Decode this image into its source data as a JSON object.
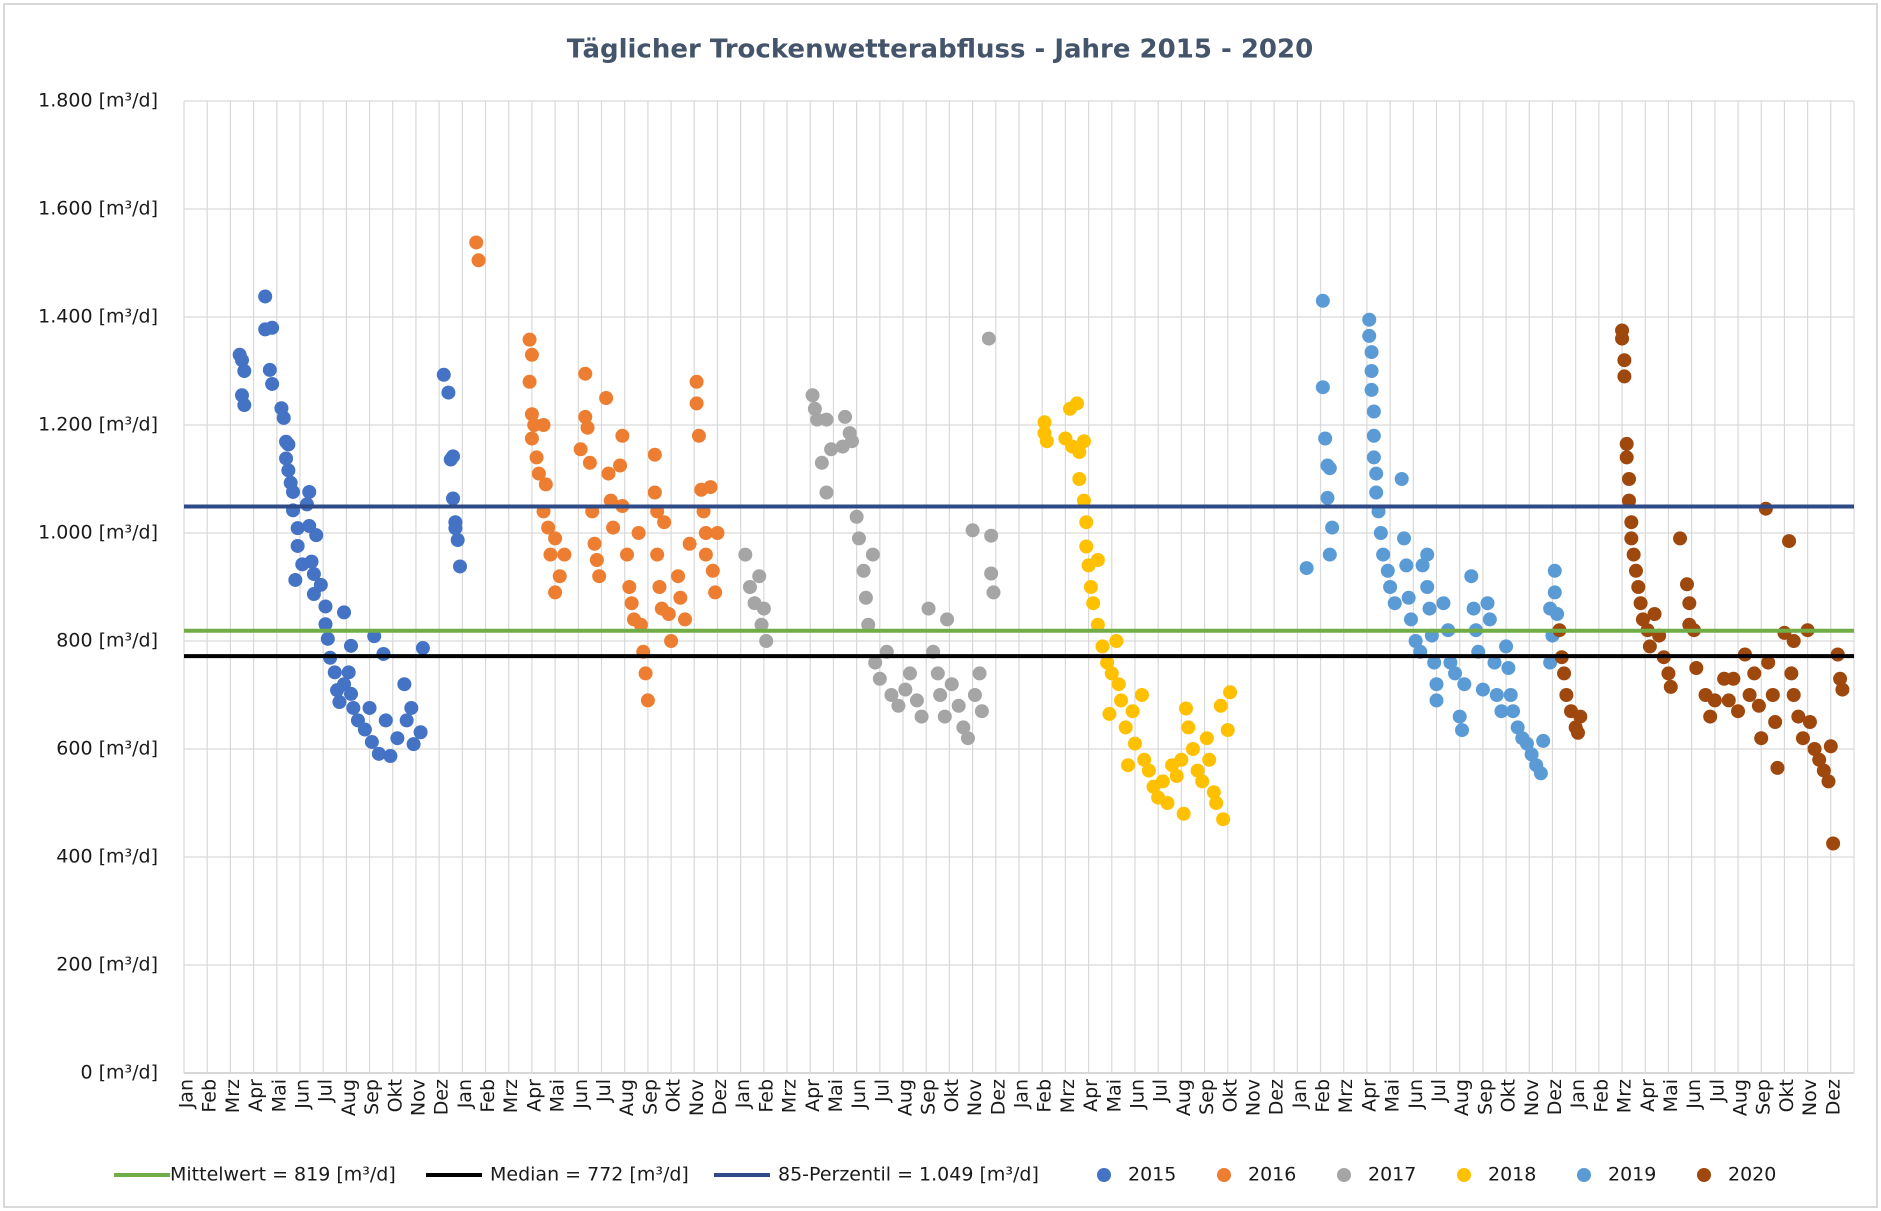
{
  "chart_data": {
    "type": "scatter",
    "title": "Täglicher Trockenwetterabfluss - Jahre 2015 - 2020",
    "xlim": [
      0,
      72
    ],
    "xticks": [
      {
        "value": 0,
        "label": "Jan"
      },
      {
        "value": 1,
        "label": "Feb"
      },
      {
        "value": 2,
        "label": "Mrz"
      },
      {
        "value": 3,
        "label": "Apr"
      },
      {
        "value": 4,
        "label": "Mai"
      },
      {
        "value": 5,
        "label": "Jun"
      },
      {
        "value": 6,
        "label": "Jul"
      },
      {
        "value": 7,
        "label": "Aug"
      },
      {
        "value": 8,
        "label": "Sep"
      },
      {
        "value": 9,
        "label": "Okt"
      },
      {
        "value": 10,
        "label": "Nov"
      },
      {
        "value": 11,
        "label": "Dez"
      },
      {
        "value": 12,
        "label": "Jan"
      },
      {
        "value": 13,
        "label": "Feb"
      },
      {
        "value": 14,
        "label": "Mrz"
      },
      {
        "value": 15,
        "label": "Apr"
      },
      {
        "value": 16,
        "label": "Mai"
      },
      {
        "value": 17,
        "label": "Jun"
      },
      {
        "value": 18,
        "label": "Jul"
      },
      {
        "value": 19,
        "label": "Aug"
      },
      {
        "value": 20,
        "label": "Sep"
      },
      {
        "value": 21,
        "label": "Okt"
      },
      {
        "value": 22,
        "label": "Nov"
      },
      {
        "value": 23,
        "label": "Dez"
      },
      {
        "value": 24,
        "label": "Jan"
      },
      {
        "value": 25,
        "label": "Feb"
      },
      {
        "value": 26,
        "label": "Mrz"
      },
      {
        "value": 27,
        "label": "Apr"
      },
      {
        "value": 28,
        "label": "Mai"
      },
      {
        "value": 29,
        "label": "Jun"
      },
      {
        "value": 30,
        "label": "Jul"
      },
      {
        "value": 31,
        "label": "Aug"
      },
      {
        "value": 32,
        "label": "Sep"
      },
      {
        "value": 33,
        "label": "Okt"
      },
      {
        "value": 34,
        "label": "Nov"
      },
      {
        "value": 35,
        "label": "Dez"
      },
      {
        "value": 36,
        "label": "Jan"
      },
      {
        "value": 37,
        "label": "Feb"
      },
      {
        "value": 38,
        "label": "Mrz"
      },
      {
        "value": 39,
        "label": "Apr"
      },
      {
        "value": 40,
        "label": "Mai"
      },
      {
        "value": 41,
        "label": "Jun"
      },
      {
        "value": 42,
        "label": "Jul"
      },
      {
        "value": 43,
        "label": "Aug"
      },
      {
        "value": 44,
        "label": "Sep"
      },
      {
        "value": 45,
        "label": "Okt"
      },
      {
        "value": 46,
        "label": "Nov"
      },
      {
        "value": 47,
        "label": "Dez"
      },
      {
        "value": 48,
        "label": "Jan"
      },
      {
        "value": 49,
        "label": "Feb"
      },
      {
        "value": 50,
        "label": "Mrz"
      },
      {
        "value": 51,
        "label": "Apr"
      },
      {
        "value": 52,
        "label": "Mai"
      },
      {
        "value": 53,
        "label": "Jun"
      },
      {
        "value": 54,
        "label": "Jul"
      },
      {
        "value": 55,
        "label": "Aug"
      },
      {
        "value": 56,
        "label": "Sep"
      },
      {
        "value": 57,
        "label": "Okt"
      },
      {
        "value": 58,
        "label": "Nov"
      },
      {
        "value": 59,
        "label": "Dez"
      },
      {
        "value": 60,
        "label": "Jan"
      },
      {
        "value": 61,
        "label": "Feb"
      },
      {
        "value": 62,
        "label": "Mrz"
      },
      {
        "value": 63,
        "label": "Apr"
      },
      {
        "value": 64,
        "label": "Mai"
      },
      {
        "value": 65,
        "label": "Jun"
      },
      {
        "value": 66,
        "label": "Jul"
      },
      {
        "value": 67,
        "label": "Aug"
      },
      {
        "value": 68,
        "label": "Sep"
      },
      {
        "value": 69,
        "label": "Okt"
      },
      {
        "value": 70,
        "label": "Nov"
      },
      {
        "value": 71,
        "label": "Dez"
      }
    ],
    "ylim": [
      0,
      1800
    ],
    "yticks": [
      {
        "value": 0,
        "label": "0 [m³/d]"
      },
      {
        "value": 200,
        "label": "200 [m³/d]"
      },
      {
        "value": 400,
        "label": "400 [m³/d]"
      },
      {
        "value": 600,
        "label": "600 [m³/d]"
      },
      {
        "value": 800,
        "label": "800 [m³/d]"
      },
      {
        "value": 1000,
        "label": "1.000 [m³/d]"
      },
      {
        "value": 1200,
        "label": "1.200 [m³/d]"
      },
      {
        "value": 1400,
        "label": "1.400 [m³/d]"
      },
      {
        "value": 1600,
        "label": "1.600 [m³/d]"
      },
      {
        "value": 1800,
        "label": "1.800 [m³/d]"
      }
    ],
    "grid": true,
    "legend": "bottom",
    "reference_lines": [
      {
        "name": "Mittelwert = 819 [m³/d]",
        "color": "#70ad47",
        "value": 819
      },
      {
        "name": "Median = 772 [m³/d]",
        "color": "#000000",
        "value": 772
      },
      {
        "name": "85-Perzentil = 1.049 [m³/d]",
        "color": "#2f4b87",
        "value": 1049
      }
    ],
    "series": [
      {
        "name": "2015",
        "color": "#4472c4",
        "x": [
          2.4,
          2.5,
          2.6,
          2.5,
          2.6,
          3.5,
          3.5,
          3.8,
          3.7,
          3.8,
          4.2,
          4.3,
          4.4,
          4.5,
          4.4,
          4.5,
          4.6,
          4.7,
          4.7,
          4.9,
          4.9,
          4.8,
          5.1,
          5.4,
          5.3,
          5.4,
          5.7,
          5.5,
          5.6,
          5.6,
          5.9,
          6.1,
          6.1,
          6.2,
          6.3,
          6.5,
          6.6,
          6.7,
          6.9,
          6.9,
          7.1,
          7.2,
          7.2,
          7.3,
          7.5,
          7.8,
          8.0,
          8.2,
          8.1,
          8.4,
          8.6,
          8.7,
          8.9,
          9.2,
          9.5,
          9.6,
          9.8,
          9.9,
          10.2,
          10.3,
          11.2,
          11.4,
          11.5,
          11.6,
          11.6,
          11.7,
          11.8,
          11.9,
          11.7
        ],
        "values": [
          1330,
          1320,
          1300,
          1255,
          1237,
          1438,
          1377,
          1380,
          1302,
          1276,
          1231,
          1213,
          1169,
          1164,
          1138,
          1116,
          1093,
          1076,
          1042,
          1009,
          976,
          913,
          942,
          1076,
          1053,
          1013,
          996,
          947,
          924,
          887,
          904,
          864,
          831,
          804,
          769,
          742,
          709,
          687,
          853,
          720,
          742,
          791,
          702,
          676,
          653,
          636,
          676,
          809,
          613,
          591,
          776,
          653,
          587,
          620,
          720,
          653,
          676,
          609,
          631,
          787,
          1293,
          1260,
          1136,
          1142,
          1064,
          1020,
          987,
          938,
          1009
        ]
      },
      {
        "name": "2016",
        "color": "#ed7d31",
        "x": [
          12.6,
          12.7,
          14.9,
          15.0,
          14.9,
          15.0,
          15.1,
          15.0,
          15.2,
          15.3,
          15.5,
          15.6,
          15.5,
          15.7,
          15.8,
          16.0,
          16.2,
          16.0,
          16.4,
          17.1,
          17.3,
          17.3,
          17.4,
          17.5,
          17.6,
          17.7,
          17.8,
          17.9,
          18.2,
          18.3,
          18.4,
          18.5,
          18.8,
          18.9,
          18.9,
          19.1,
          19.2,
          19.3,
          19.4,
          19.6,
          19.7,
          19.8,
          19.9,
          20.0,
          20.3,
          20.3,
          20.4,
          20.4,
          20.5,
          20.6,
          20.7,
          20.9,
          21.0,
          21.3,
          21.4,
          21.6,
          21.8,
          22.1,
          22.1,
          22.2,
          22.3,
          22.4,
          22.5,
          22.5,
          22.7,
          22.8,
          22.9,
          23.0
        ],
        "values": [
          1538,
          1505,
          1358,
          1330,
          1280,
          1220,
          1200,
          1175,
          1140,
          1110,
          1200,
          1090,
          1040,
          1010,
          960,
          990,
          920,
          890,
          960,
          1155,
          1295,
          1215,
          1195,
          1130,
          1040,
          980,
          950,
          920,
          1250,
          1110,
          1060,
          1010,
          1125,
          1180,
          1050,
          960,
          900,
          870,
          840,
          1000,
          830,
          780,
          740,
          690,
          1145,
          1075,
          1040,
          960,
          900,
          860,
          1020,
          850,
          800,
          920,
          880,
          840,
          980,
          1280,
          1240,
          1180,
          1080,
          1040,
          1000,
          960,
          1085,
          930,
          890,
          1000
        ]
      },
      {
        "name": "2017",
        "color": "#a5a5a5",
        "x": [
          24.2,
          24.4,
          24.6,
          24.8,
          25.0,
          25.1,
          24.9,
          27.1,
          27.2,
          27.3,
          27.5,
          27.7,
          27.7,
          27.9,
          28.4,
          28.5,
          28.7,
          28.8,
          29.0,
          29.1,
          29.3,
          29.4,
          29.5,
          29.7,
          29.8,
          30.0,
          30.3,
          30.5,
          30.8,
          31.1,
          31.3,
          31.6,
          31.8,
          32.1,
          32.3,
          32.5,
          32.6,
          32.8,
          32.9,
          33.1,
          33.4,
          33.6,
          33.8,
          34.0,
          34.1,
          34.3,
          34.4,
          34.7,
          34.8,
          34.8,
          34.9
        ],
        "values": [
          960,
          900,
          870,
          920,
          860,
          800,
          830,
          1255,
          1230,
          1210,
          1130,
          1075,
          1210,
          1155,
          1160,
          1215,
          1185,
          1170,
          1030,
          990,
          930,
          880,
          830,
          960,
          760,
          730,
          780,
          700,
          680,
          710,
          740,
          690,
          660,
          860,
          780,
          740,
          700,
          660,
          840,
          720,
          680,
          640,
          620,
          1005,
          700,
          740,
          670,
          1360,
          995,
          925,
          890
        ]
      },
      {
        "name": "2018",
        "color": "#ffc000",
        "x": [
          37.1,
          37.1,
          37.2,
          38.0,
          38.2,
          38.3,
          38.5,
          38.6,
          38.8,
          38.6,
          38.8,
          38.9,
          38.9,
          39.0,
          39.1,
          39.2,
          39.4,
          39.4,
          39.6,
          39.8,
          40.0,
          39.9,
          40.2,
          40.3,
          40.4,
          40.6,
          40.7,
          40.9,
          41.0,
          41.3,
          41.4,
          41.6,
          41.8,
          42.0,
          42.2,
          42.4,
          42.6,
          42.8,
          43.0,
          43.2,
          43.1,
          43.3,
          43.5,
          43.7,
          43.9,
          44.1,
          44.2,
          44.4,
          44.5,
          44.7,
          44.8,
          45.1,
          45.0
        ],
        "values": [
          1205,
          1185,
          1170,
          1175,
          1230,
          1160,
          1240,
          1150,
          1170,
          1100,
          1060,
          1020,
          975,
          940,
          900,
          870,
          950,
          830,
          790,
          760,
          740,
          665,
          800,
          720,
          690,
          640,
          570,
          670,
          610,
          700,
          580,
          560,
          530,
          510,
          540,
          500,
          570,
          550,
          580,
          675,
          480,
          640,
          600,
          560,
          540,
          620,
          580,
          520,
          500,
          680,
          470,
          705,
          635
        ]
      },
      {
        "name": "2019",
        "color": "#5b9bd5",
        "x": [
          48.4,
          49.1,
          49.1,
          49.2,
          49.3,
          49.4,
          49.3,
          49.5,
          49.4,
          51.1,
          51.1,
          51.2,
          51.2,
          51.2,
          51.3,
          51.3,
          51.3,
          51.4,
          51.4,
          51.5,
          51.6,
          51.7,
          51.9,
          52.0,
          52.2,
          52.5,
          52.6,
          52.7,
          52.8,
          52.9,
          53.1,
          53.3,
          53.4,
          53.6,
          53.6,
          53.7,
          53.8,
          53.9,
          54.0,
          54.0,
          54.3,
          54.5,
          54.6,
          54.8,
          55.0,
          55.1,
          55.2,
          55.5,
          55.6,
          55.7,
          55.8,
          56.0,
          56.2,
          56.3,
          56.5,
          56.6,
          56.8,
          57.0,
          57.1,
          57.2,
          57.3,
          57.5,
          57.7,
          57.9,
          58.1,
          58.3,
          58.5,
          58.6,
          58.9,
          59.1,
          59.1,
          59.2,
          59.0,
          58.9
        ],
        "values": [
          935,
          1430,
          1270,
          1175,
          1125,
          1120,
          1065,
          1010,
          960,
          1395,
          1365,
          1335,
          1300,
          1265,
          1225,
          1180,
          1140,
          1110,
          1075,
          1040,
          1000,
          960,
          930,
          900,
          870,
          1100,
          990,
          940,
          880,
          840,
          800,
          780,
          940,
          960,
          900,
          860,
          810,
          760,
          720,
          690,
          870,
          820,
          760,
          740,
          660,
          635,
          720,
          920,
          860,
          820,
          780,
          710,
          870,
          840,
          760,
          700,
          670,
          790,
          750,
          700,
          670,
          640,
          620,
          610,
          590,
          570,
          555,
          615,
          860,
          930,
          890,
          850,
          810,
          760
        ]
      },
      {
        "name": "2020",
        "color": "#9e480e",
        "x": [
          59.3,
          59.4,
          59.5,
          59.6,
          59.8,
          60.0,
          60.1,
          60.2,
          62.0,
          62.0,
          62.1,
          62.1,
          62.2,
          62.2,
          62.3,
          62.3,
          62.4,
          62.4,
          62.5,
          62.6,
          62.7,
          62.8,
          62.9,
          63.1,
          63.2,
          63.4,
          63.6,
          63.8,
          64.0,
          64.1,
          64.5,
          64.8,
          64.9,
          64.9,
          65.1,
          65.2,
          65.6,
          65.8,
          66.0,
          66.4,
          66.6,
          66.8,
          67.0,
          67.3,
          67.5,
          67.7,
          67.9,
          68.0,
          68.2,
          68.3,
          68.5,
          68.6,
          68.7,
          69.0,
          69.2,
          69.3,
          69.4,
          69.4,
          69.6,
          69.8,
          70.0,
          70.1,
          70.3,
          70.5,
          70.7,
          70.9,
          71.0,
          71.1,
          71.3,
          71.4,
          71.5
        ],
        "values": [
          820,
          770,
          740,
          700,
          670,
          640,
          630,
          660,
          1375,
          1360,
          1320,
          1290,
          1165,
          1140,
          1100,
          1060,
          1020,
          990,
          960,
          930,
          900,
          870,
          840,
          820,
          790,
          850,
          810,
          770,
          740,
          715,
          990,
          905,
          870,
          830,
          820,
          750,
          700,
          660,
          690,
          730,
          690,
          730,
          670,
          775,
          700,
          740,
          680,
          620,
          1045,
          760,
          700,
          650,
          565,
          815,
          985,
          740,
          700,
          800,
          660,
          620,
          820,
          650,
          600,
          580,
          560,
          540,
          605,
          425,
          775,
          730,
          710
        ]
      }
    ]
  }
}
